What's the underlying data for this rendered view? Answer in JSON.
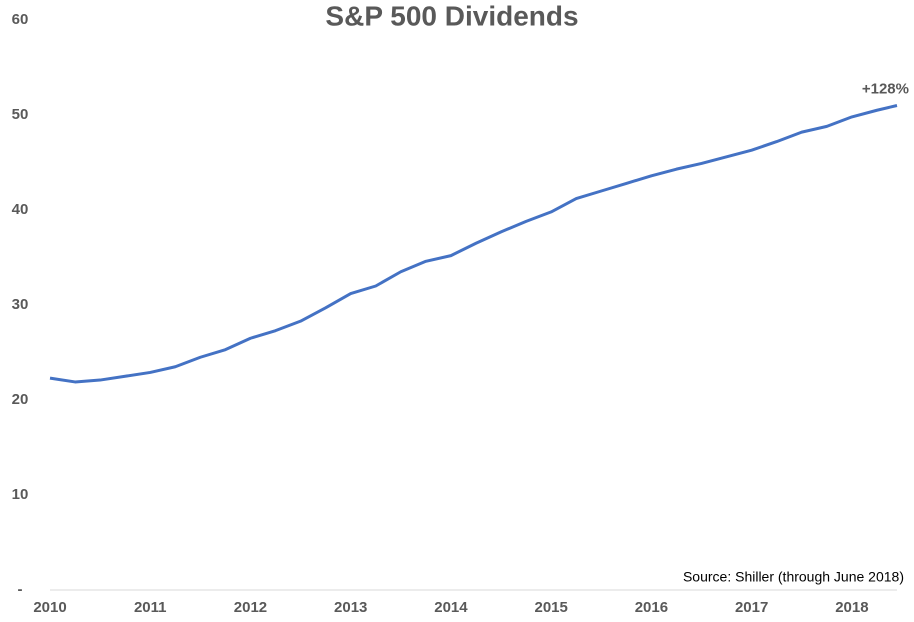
{
  "chart_data": {
    "type": "line",
    "title": "S&P 500 Dividends",
    "x": [
      2010,
      2010.25,
      2010.5,
      2010.75,
      2011,
      2011.25,
      2011.5,
      2011.75,
      2012,
      2012.25,
      2012.5,
      2012.75,
      2013,
      2013.25,
      2013.5,
      2013.75,
      2014,
      2014.25,
      2014.5,
      2014.75,
      2015,
      2015.25,
      2015.5,
      2015.75,
      2016,
      2016.25,
      2016.5,
      2016.75,
      2017,
      2017.25,
      2017.5,
      2017.75,
      2018,
      2018.25,
      2018.45
    ],
    "values": [
      22.3,
      21.9,
      22.1,
      22.5,
      22.9,
      23.5,
      24.5,
      25.3,
      26.5,
      27.3,
      28.3,
      29.7,
      31.2,
      32.0,
      33.5,
      34.6,
      35.2,
      36.5,
      37.7,
      38.8,
      39.8,
      41.2,
      42.0,
      42.8,
      43.6,
      44.3,
      44.9,
      45.6,
      46.3,
      47.2,
      48.2,
      48.8,
      49.8,
      50.5,
      51.0
    ],
    "color": "#4472c4",
    "xlim": [
      2010,
      2018.5
    ],
    "xticks": [
      2010,
      2011,
      2012,
      2013,
      2014,
      2015,
      2016,
      2017,
      2018
    ],
    "ylim": [
      0,
      60
    ],
    "yticks": [
      {
        "value": 0,
        "label": "-"
      },
      10,
      20,
      30,
      40,
      50,
      60
    ],
    "grid": false,
    "annotation": "+128%",
    "source": "Source: Shiller (through June 2018)"
  }
}
